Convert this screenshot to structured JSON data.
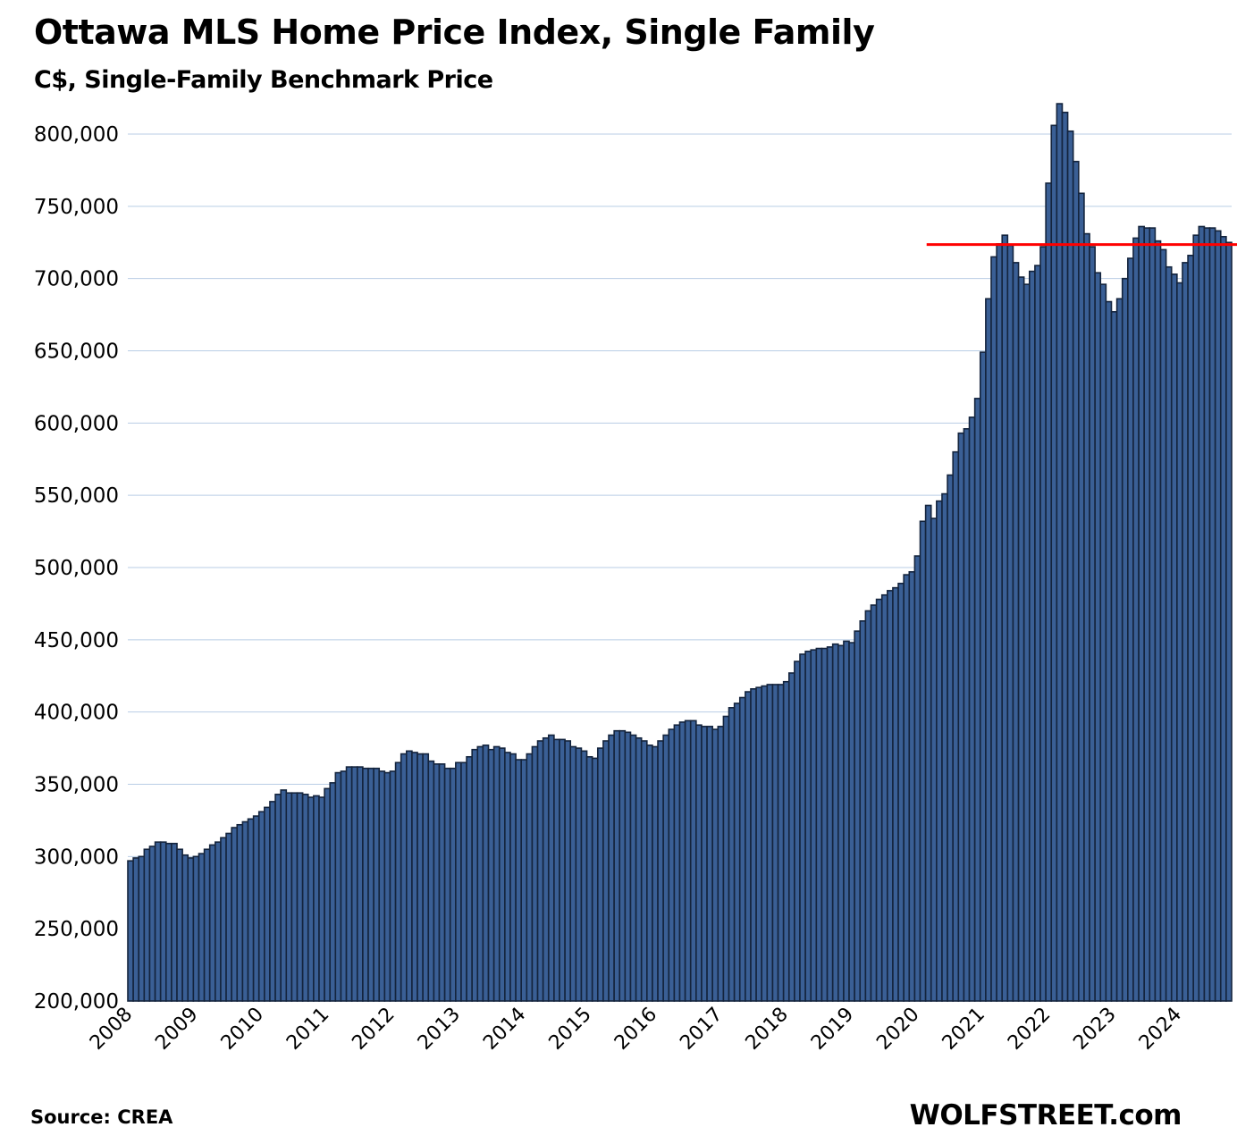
{
  "chart_data": {
    "type": "bar",
    "title": "Ottawa MLS Home Price Index, Single Family",
    "subtitle": "C$, Single-Family Benchmark Price",
    "xlabel": "",
    "ylabel": "",
    "ylim": [
      200000,
      800000
    ],
    "yticks": [
      200000,
      250000,
      300000,
      350000,
      400000,
      450000,
      500000,
      550000,
      600000,
      650000,
      700000,
      750000,
      800000
    ],
    "ytick_labels": [
      "200,000",
      "250,000",
      "300,000",
      "350,000",
      "400,000",
      "450,000",
      "500,000",
      "550,000",
      "600,000",
      "650,000",
      "700,000",
      "750,000",
      "800,000"
    ],
    "x_start": "2008-01",
    "frequency": "monthly",
    "xtick_labels": [
      "2008",
      "2009",
      "2010",
      "2011",
      "2012",
      "2013",
      "2014",
      "2015",
      "2016",
      "2017",
      "2018",
      "2019",
      "2020",
      "2021",
      "2022",
      "2023",
      "2024"
    ],
    "grid": true,
    "legend": "none",
    "reference_line": {
      "value": 723500,
      "from": "2020-04",
      "color": "#ff0000"
    },
    "bar_color": "#3a5f95",
    "values": [
      297000,
      299000,
      300000,
      305000,
      307000,
      310000,
      310000,
      309000,
      309000,
      305000,
      301000,
      299000,
      300000,
      302000,
      305000,
      308000,
      310000,
      313000,
      316000,
      320000,
      322000,
      324000,
      326000,
      328000,
      331000,
      334000,
      338000,
      343000,
      346000,
      344000,
      344000,
      344000,
      343000,
      341000,
      342000,
      341000,
      347000,
      351000,
      358000,
      359000,
      362000,
      362000,
      362000,
      361000,
      361000,
      361000,
      359000,
      358000,
      359000,
      365000,
      371000,
      373000,
      372000,
      371000,
      371000,
      366000,
      364000,
      364000,
      361000,
      361000,
      365000,
      365000,
      369000,
      374000,
      376000,
      377000,
      374000,
      376000,
      375000,
      372000,
      371000,
      367000,
      367000,
      371000,
      376000,
      380000,
      382000,
      384000,
      381000,
      381000,
      380000,
      376000,
      375000,
      373000,
      369000,
      368000,
      375000,
      380000,
      384000,
      387000,
      387000,
      386000,
      384000,
      382000,
      380000,
      377000,
      376000,
      380000,
      384000,
      388000,
      391000,
      393000,
      394000,
      394000,
      391000,
      390000,
      390000,
      388000,
      390000,
      397000,
      403000,
      406000,
      410000,
      414000,
      416000,
      417000,
      418000,
      419000,
      419000,
      419000,
      421000,
      427000,
      435000,
      440000,
      442000,
      443000,
      444000,
      444000,
      445000,
      447000,
      446000,
      449000,
      448000,
      456000,
      463000,
      470000,
      474000,
      478000,
      481000,
      484000,
      486000,
      489000,
      495000,
      497000,
      508000,
      532000,
      543000,
      534000,
      546000,
      551000,
      564000,
      580000,
      593000,
      596000,
      604000,
      617000,
      649000,
      686000,
      715000,
      724000,
      730000,
      723000,
      711000,
      701000,
      696000,
      705000,
      709000,
      722000,
      766000,
      806000,
      821000,
      815000,
      802000,
      781000,
      759000,
      731000,
      722000,
      704000,
      696000,
      684000,
      677000,
      686000,
      700000,
      714000,
      728000,
      736000,
      735000,
      735000,
      726000,
      720000,
      708000,
      703000,
      697000,
      711000,
      716000,
      730000,
      736000,
      735000,
      735000,
      733000,
      729000,
      725000
    ]
  },
  "footer": {
    "source": "Source: CREA",
    "brand": "WOLFSTREET.com"
  }
}
